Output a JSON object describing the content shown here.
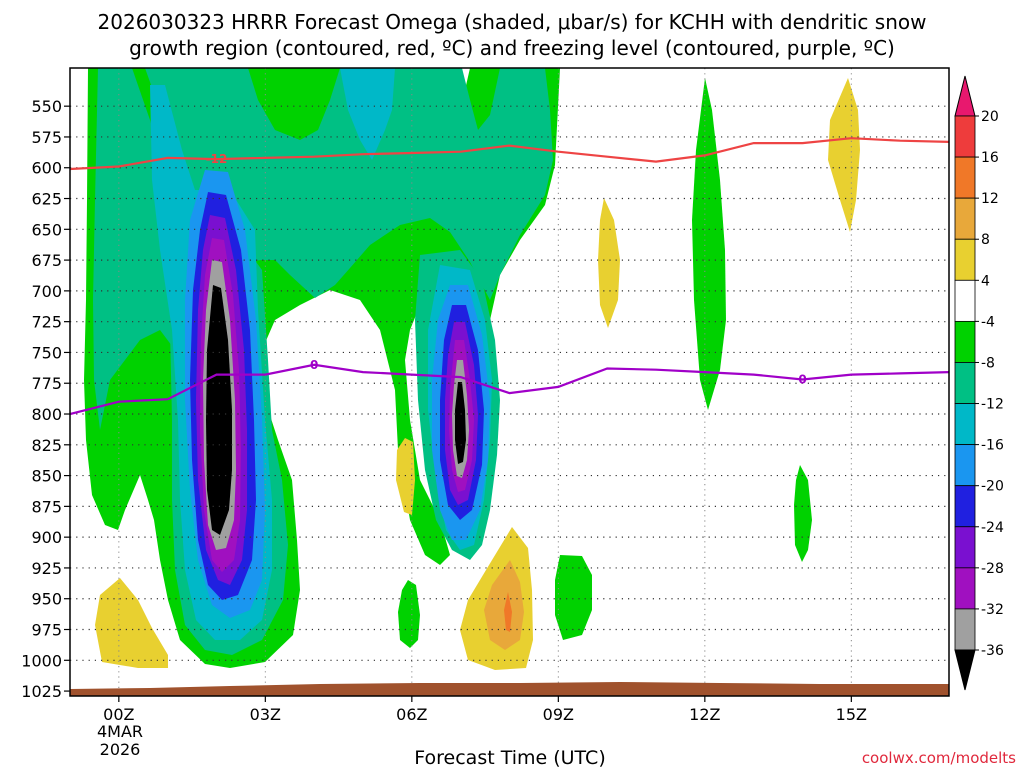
{
  "chart_data": {
    "type": "contour",
    "title_lines": [
      "2026030323 HRRR Forecast Omega (shaded, μbar/s) for KCHH with dendritic snow",
      "growth region (contoured, red, ºC) and freezing level (contoured, purple, ºC)"
    ],
    "xlabel": "Forecast Time (UTC)",
    "x_ticks": [
      "00Z",
      "03Z",
      "06Z",
      "09Z",
      "12Z",
      "15Z"
    ],
    "x_tick_hours": [
      0,
      3,
      6,
      9,
      12,
      15
    ],
    "date_label": [
      "4MAR",
      "2026"
    ],
    "x_range_hours": [
      -1,
      17
    ],
    "y_ticks": [
      550,
      575,
      600,
      625,
      650,
      675,
      700,
      725,
      750,
      775,
      800,
      825,
      850,
      875,
      900,
      925,
      950,
      975,
      1000,
      1025
    ],
    "y_range_mb": [
      519,
      1029
    ],
    "colorbar_ticks": [
      "20",
      "16",
      "12",
      "8",
      "4",
      "-4",
      "-8",
      "-12",
      "-16",
      "-20",
      "-24",
      "-28",
      "-32",
      "-36"
    ],
    "colorbar_colors": [
      "#e8186e",
      "#ee3c3c",
      "#f07828",
      "#e8a83a",
      "#e8d030",
      "#ffffff",
      "#00d200",
      "#00c084",
      "#00b8c8",
      "#1a96f0",
      "#2020e0",
      "#7a10d0",
      "#a010c0",
      "#a0a0a0",
      "#000000"
    ],
    "shaded_field": "omega (μbar/s)",
    "contours": [
      {
        "name": "dendritic-snow-growth-region",
        "label": "-12",
        "color": "#ee4444",
        "points": [
          [
            -1,
            601
          ],
          [
            0,
            599
          ],
          [
            1,
            592
          ],
          [
            2,
            593
          ],
          [
            3,
            592
          ],
          [
            4,
            591
          ],
          [
            5,
            589
          ],
          [
            6,
            588
          ],
          [
            7,
            587
          ],
          [
            8,
            582
          ],
          [
            9,
            587
          ],
          [
            10,
            591
          ],
          [
            11,
            595
          ],
          [
            12,
            590
          ],
          [
            13,
            580
          ],
          [
            14,
            580
          ],
          [
            15,
            576
          ],
          [
            16,
            578
          ],
          [
            17,
            579
          ]
        ]
      },
      {
        "name": "freezing-level",
        "label": "0",
        "color": "#a000c8",
        "points": [
          [
            -1,
            800
          ],
          [
            0,
            790
          ],
          [
            1,
            788
          ],
          [
            2,
            768
          ],
          [
            3,
            768
          ],
          [
            4,
            760
          ],
          [
            5,
            766
          ],
          [
            6,
            768
          ],
          [
            7,
            770
          ],
          [
            8,
            783
          ],
          [
            9,
            778
          ],
          [
            10,
            763
          ],
          [
            11,
            764
          ],
          [
            12,
            766
          ],
          [
            13,
            768
          ],
          [
            14,
            772
          ],
          [
            15,
            768
          ],
          [
            16,
            767
          ],
          [
            17,
            766
          ]
        ]
      }
    ],
    "terrain_color": "#a0522d",
    "credit": "coolwx.com/modelts"
  }
}
